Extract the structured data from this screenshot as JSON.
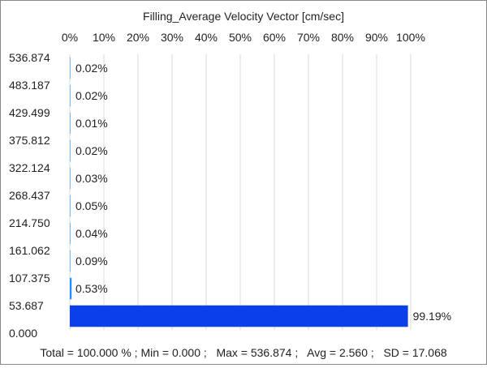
{
  "chart_data": {
    "type": "bar",
    "orientation": "horizontal",
    "title": "Filling_Average Velocity Vector [cm/sec]",
    "x_ticks": [
      "0%",
      "10%",
      "20%",
      "30%",
      "40%",
      "50%",
      "60%",
      "70%",
      "80%",
      "90%",
      "100%"
    ],
    "x_range": [
      0,
      100
    ],
    "y_boundaries": [
      "536.874",
      "483.187",
      "429.499",
      "375.812",
      "322.124",
      "268.437",
      "214.750",
      "161.062",
      "107.375",
      "53.687",
      "0.000"
    ],
    "bins": [
      {
        "from": 483.187,
        "to": 536.874,
        "value": 0.02,
        "label": "0.02%"
      },
      {
        "from": 429.499,
        "to": 483.187,
        "value": 0.02,
        "label": "0.02%"
      },
      {
        "from": 375.812,
        "to": 429.499,
        "value": 0.01,
        "label": "0.01%"
      },
      {
        "from": 322.124,
        "to": 375.812,
        "value": 0.02,
        "label": "0.02%"
      },
      {
        "from": 268.437,
        "to": 322.124,
        "value": 0.03,
        "label": "0.03%"
      },
      {
        "from": 214.75,
        "to": 268.437,
        "value": 0.05,
        "label": "0.05%"
      },
      {
        "from": 161.062,
        "to": 214.75,
        "value": 0.04,
        "label": "0.04%"
      },
      {
        "from": 107.375,
        "to": 161.062,
        "value": 0.09,
        "label": "0.09%"
      },
      {
        "from": 53.687,
        "to": 107.375,
        "value": 0.53,
        "label": "0.53%"
      },
      {
        "from": 0.0,
        "to": 53.687,
        "value": 99.19,
        "label": "99.19%"
      }
    ],
    "bar_color": "#0a3fea",
    "small_bar_color": "#1e90ff",
    "grid": true,
    "legend": false
  },
  "footer": {
    "summary": "Total = 100.000 % ; Min = 0.000 ;   Max = 536.874 ;   Avg = 2.560 ;   SD = 17.068"
  }
}
